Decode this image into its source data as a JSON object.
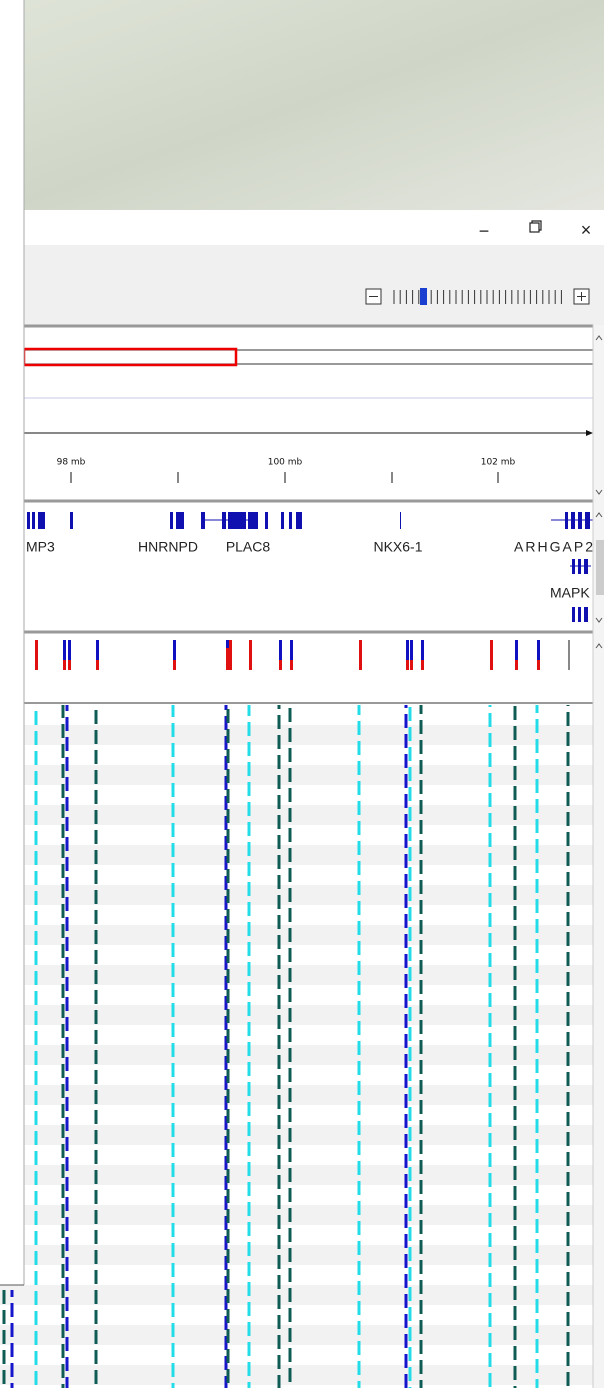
{
  "window_controls": {
    "minimize": "−",
    "close": "×"
  },
  "ruler": {
    "labels": [
      "98 mb",
      "100 mb",
      "102 mb"
    ]
  },
  "genes": {
    "names": [
      "MP3",
      "HNRNPD",
      "PLAC8",
      "NKX6-1",
      "ARHGAP2",
      "MAPK"
    ]
  }
}
